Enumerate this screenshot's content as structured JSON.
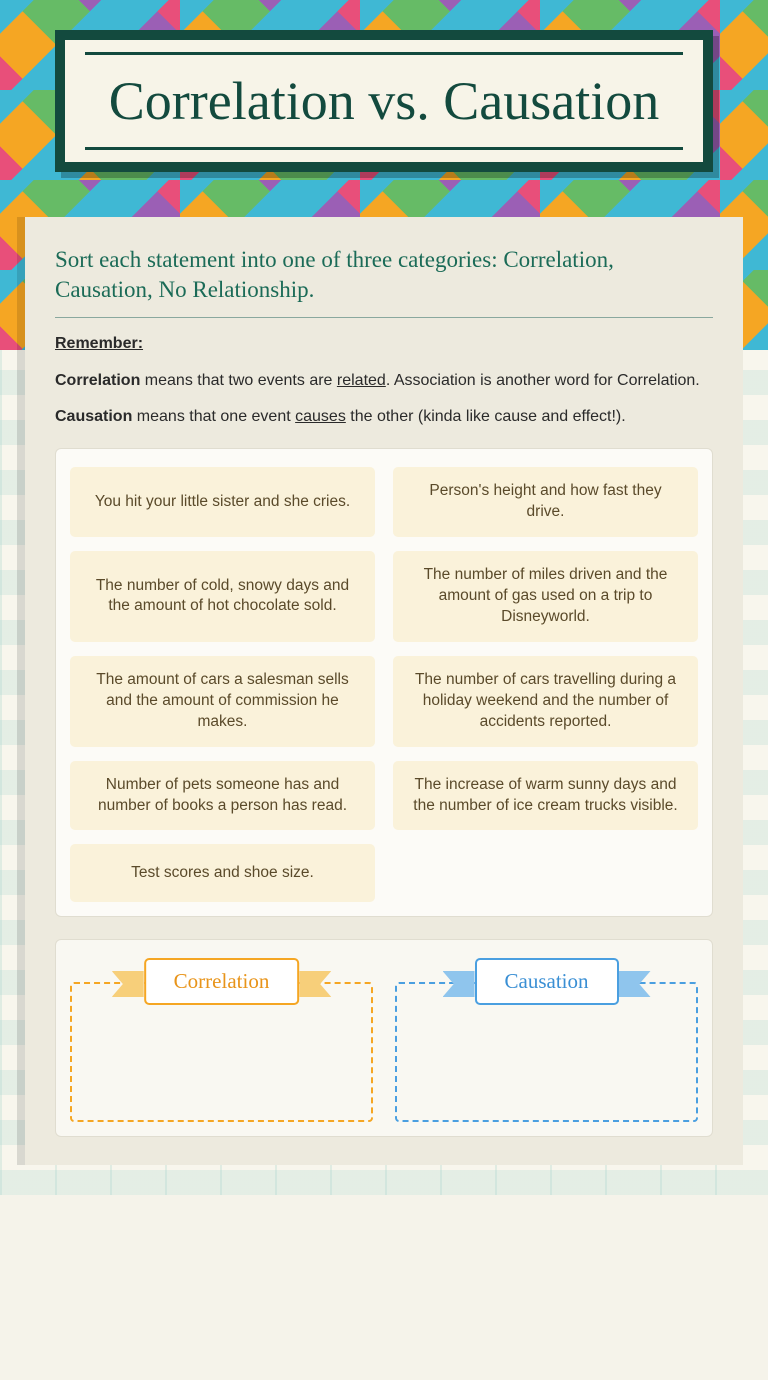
{
  "title": "Correlation vs. Causation",
  "instructions": "Sort each statement into one of three categories: Correlation, Causation, No Relationship.",
  "remember": {
    "heading": "Remember:",
    "corr_term": "Correlation",
    "corr_text1": " means that two events are ",
    "corr_u": "related",
    "corr_text2": ". Association is another word for Correlation.",
    "caus_term": "Causation",
    "caus_text1": " means that one event ",
    "caus_u": "causes",
    "caus_text2": " the other (kinda like cause and effect!)."
  },
  "tiles": [
    "You hit your little sister and she cries.",
    "Person's height and how fast they drive.",
    "The number of cold, snowy days and the amount of hot chocolate sold.",
    "The number of miles driven and the amount of gas used on a trip to Disneyworld.",
    "The amount of cars a salesman sells and the amount of commission he makes.",
    "The number of cars travelling during a holiday weekend and the number of accidents reported.",
    "Number of pets someone has and number of books a person has read.",
    "The increase of warm sunny days and the number of ice cream trucks visible.",
    "Test scores and shoe size."
  ],
  "zones": {
    "correlation": {
      "label": "Correlation",
      "color": "#f5a623"
    },
    "causation": {
      "label": "Causation",
      "color": "#4a9fe0"
    }
  },
  "colors": {
    "title_border": "#134a3e",
    "title_text": "#134a3e",
    "instructions_text": "#1b6b57",
    "tile_bg": "#faf2da",
    "tile_text": "#5a4a2a",
    "card_bg": "#edeade"
  }
}
